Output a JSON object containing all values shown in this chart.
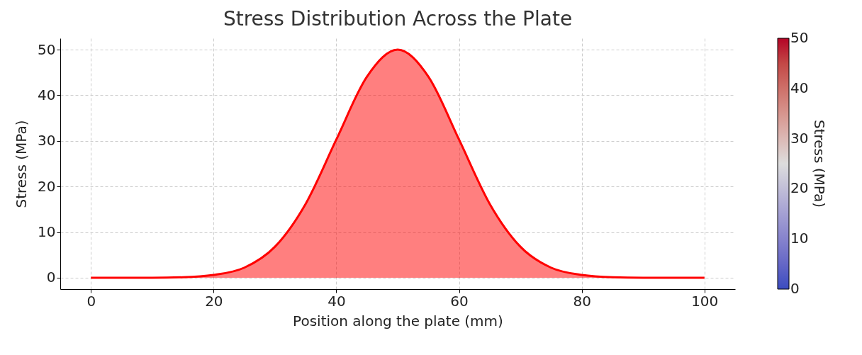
{
  "chart_data": {
    "type": "area",
    "title": "Stress Distribution Across the Plate",
    "xlabel": "Position along the plate (mm)",
    "ylabel": "Stress (MPa)",
    "clabel": "Stress (MPa)",
    "x": [
      0,
      5,
      10,
      15,
      20,
      25,
      30,
      35,
      40,
      45,
      50,
      55,
      60,
      65,
      70,
      75,
      80,
      85,
      90,
      95,
      100
    ],
    "series": [
      {
        "color": "#ff0000",
        "values": [
          0,
          0,
          0,
          0.1,
          0.6,
          2.2,
          6.8,
          16.2,
          30.3,
          44.1,
          50,
          44.1,
          30.3,
          16.2,
          6.8,
          2.2,
          0.6,
          0.1,
          0,
          0,
          0
        ]
      }
    ],
    "xlim": [
      -5,
      105
    ],
    "xticks": [
      0,
      20,
      40,
      60,
      80,
      100
    ],
    "ylim": [
      -2.5,
      52.5
    ],
    "yticks": [
      0,
      10,
      20,
      30,
      40,
      50
    ],
    "clim": [
      0,
      50
    ],
    "cticks": [
      0,
      10,
      20,
      30,
      40,
      50
    ],
    "grid": true
  }
}
